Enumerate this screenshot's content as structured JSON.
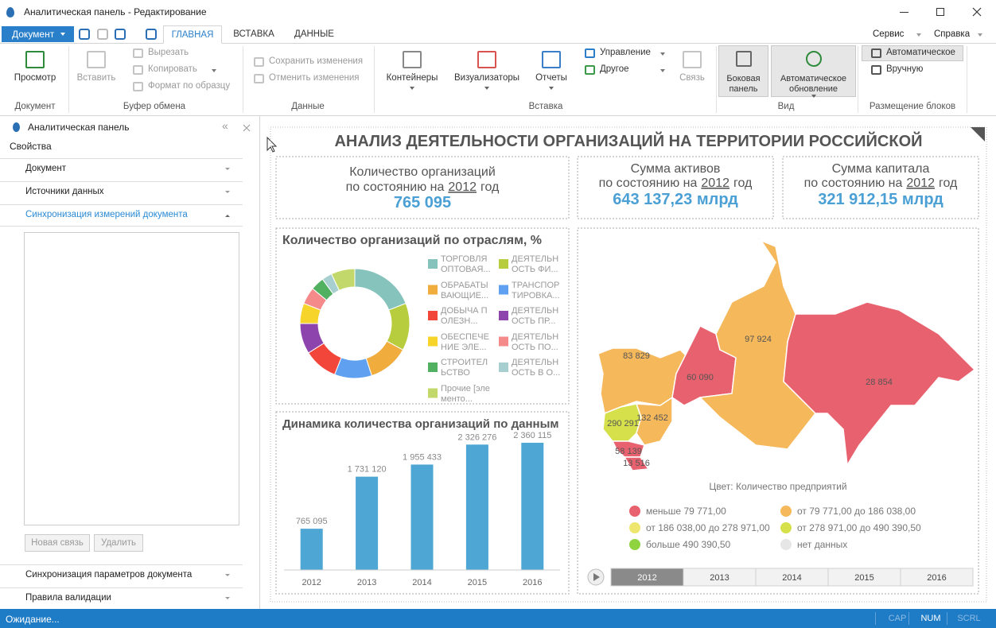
{
  "window": {
    "title": "Аналитическая панель - Редактирование"
  },
  "ribbon": {
    "app_button": "Документ",
    "tabs": [
      "ГЛАВНАЯ",
      "ВСТАВКА",
      "ДАННЫЕ"
    ],
    "menus": [
      "Сервис",
      "Справка"
    ],
    "groups": [
      {
        "label": "Документ",
        "buttons": [
          "Просмотр"
        ]
      },
      {
        "label": "Буфер обмена",
        "buttons": [
          "Вставить",
          "Вырезать",
          "Копировать",
          "Формат по образцу"
        ]
      },
      {
        "label": "Данные",
        "buttons": [
          "Сохранить изменения",
          "Отменить изменения"
        ]
      },
      {
        "label": "Вставка",
        "buttons": [
          "Контейнеры",
          "Визуализаторы",
          "Отчеты",
          "Управление",
          "Другое",
          "Связь"
        ]
      },
      {
        "label": "Вид",
        "buttons": [
          "Боковая панель",
          "Автоматическое обновление"
        ]
      },
      {
        "label": "Размещение блоков",
        "buttons": [
          "Автоматическое",
          "Вручную"
        ]
      }
    ]
  },
  "side_panel": {
    "title": "Аналитическая панель",
    "subtitle": "Свойства",
    "sections": [
      "Документ",
      "Источники данных",
      "Синхронизация измерений документа"
    ],
    "buttons": [
      "Новая связь",
      "Удалить"
    ],
    "sections_bottom": [
      "Синхронизация параметров документа",
      "Правила валидации"
    ]
  },
  "status_bar": {
    "text": "Ожидание...",
    "indicators": [
      "CAP",
      "NUM",
      "SCRL"
    ]
  },
  "dashboard": {
    "title": "АНАЛИЗ ДЕЯТЕЛЬНОСТИ ОРГАНИЗАЦИЙ НА ТЕРРИТОРИИ РОССИЙСКОЙ",
    "kpis": [
      {
        "caption": "Количество организаций",
        "subcaption": [
          "по состоянию на",
          "2012",
          "год"
        ],
        "value": "765 095"
      },
      {
        "caption": "Сумма активов",
        "subcaption": [
          "по состоянию на",
          "2012",
          "год"
        ],
        "value": "643 137,23 млрд"
      },
      {
        "caption": "Сумма капитала",
        "subcaption": [
          "по состоянию на",
          "2012",
          "год"
        ],
        "value": "321 912,15 млрд"
      }
    ],
    "map": {
      "regions": [
        {
          "label": "83 829",
          "color": "#f5b85a"
        },
        {
          "label": "290 291",
          "color": "#d5e04a"
        },
        {
          "label": "132 452",
          "color": "#f5b85a"
        },
        {
          "label": "58 139",
          "color": "#e8616e"
        },
        {
          "label": "13 516",
          "color": "#e8616e"
        },
        {
          "label": "60 090",
          "color": "#e8616e"
        },
        {
          "label": "97 924",
          "color": "#f5b85a"
        },
        {
          "label": "28 854",
          "color": "#e8616e"
        }
      ],
      "legend_title": "Цвет: Количество предприятий",
      "legend": [
        {
          "label": "меньше 79 771,00",
          "color": "#e8616e"
        },
        {
          "label": "от 79 771,00 до 186 038,00",
          "color": "#f5b85a"
        },
        {
          "label": "от 186 038,00 до 278 971,00",
          "color": "#ede66f"
        },
        {
          "label": "от 278 971,00 до 490 390,50",
          "color": "#d5e04a"
        },
        {
          "label": "больше 490 390,50",
          "color": "#8fd43f"
        },
        {
          "label": "нет данных",
          "color": "#e6e6e6"
        }
      ],
      "timeline": [
        "2012",
        "2013",
        "2014",
        "2015",
        "2016"
      ]
    }
  },
  "chart_data": [
    {
      "type": "donut",
      "title": "Количество организаций по отраслям, %",
      "categories": [
        "ТОРГОВЛЯ ОПТОВАЯ...",
        "ДЕЯТЕЛЬНОСТЬ ФИ...",
        "ОБРАБАТЫВАЮЩИЕ...",
        "ТРАНСПОРТИРОВКА...",
        "ДОБЫЧА ПОЛЕЗН...",
        "ДЕЯТЕЛЬНОСТЬ ПР...",
        "ОБЕСПЕЧЕНИЕ ЭЛЕ...",
        "ДЕЯТЕЛЬНОСТЬ ПО...",
        "СТРОИТЕЛЬСТВО",
        "ДЕЯТЕЛЬНОСТЬ В О...",
        "Прочие [элементо..."
      ],
      "values": [
        19,
        14,
        12,
        11,
        10,
        9,
        6,
        5,
        4,
        3,
        7
      ],
      "colors": [
        "#86c3bd",
        "#b8cd3e",
        "#f0ac3c",
        "#5fa0f0",
        "#f3463a",
        "#8e44ad",
        "#f7d42a",
        "#f48a8a",
        "#52b061",
        "#a8cfcf",
        "#c3d86a"
      ]
    },
    {
      "type": "bar",
      "title": "Динамика количества организаций по данным",
      "categories": [
        "2012",
        "2013",
        "2014",
        "2015",
        "2016"
      ],
      "values": [
        765095,
        1731120,
        1955433,
        2326276,
        2360115
      ],
      "value_labels": [
        "765 095",
        "1 731 120",
        "1 955 433",
        "2 326 276",
        "2 360 115"
      ],
      "color": "#4da6d4",
      "ylim": [
        0,
        2500000
      ]
    }
  ]
}
